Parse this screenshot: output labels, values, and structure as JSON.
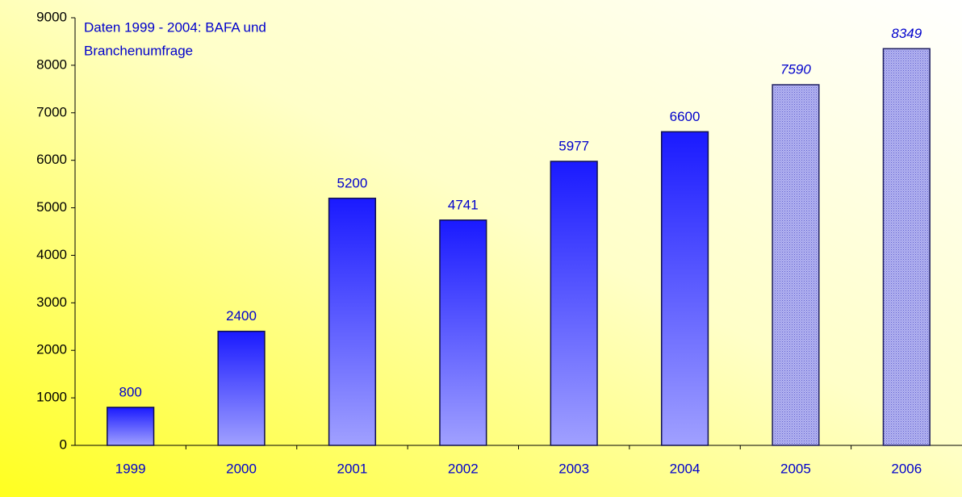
{
  "chart_data": {
    "type": "bar",
    "annotation": [
      "Daten 1999 - 2004: BAFA und",
      "Branchenumfrage"
    ],
    "categories": [
      "1999",
      "2000",
      "2001",
      "2002",
      "2003",
      "2004",
      "2005",
      "2006"
    ],
    "values": [
      800,
      2400,
      5200,
      4741,
      5977,
      6600,
      7590,
      8349
    ],
    "bar_styles": [
      "gradient",
      "gradient",
      "gradient",
      "gradient",
      "gradient",
      "gradient",
      "hatched",
      "hatched"
    ],
    "color": "#2020ff",
    "label_color": "#0000cc",
    "ylim": [
      0,
      9000
    ],
    "yticks": [
      0,
      1000,
      2000,
      3000,
      4000,
      5000,
      6000,
      7000,
      8000,
      9000
    ],
    "grid": false
  }
}
